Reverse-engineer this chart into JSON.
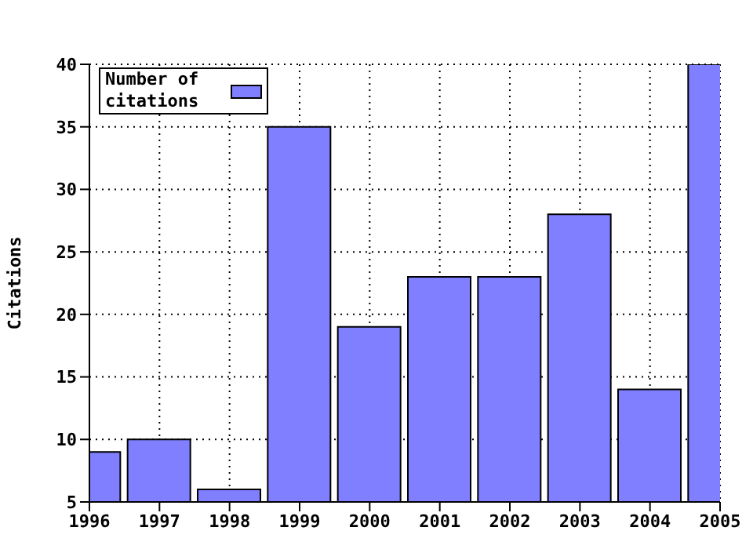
{
  "chart_data": {
    "type": "bar",
    "ylabel": "Citations",
    "x": [
      1996,
      1997,
      1998,
      1999,
      2000,
      2001,
      2002,
      2003,
      2004,
      2005
    ],
    "series": [
      {
        "name": "Number of citations",
        "color": "#7f7fff",
        "values": [
          9,
          10,
          6,
          35,
          19,
          23,
          23,
          28,
          14,
          40
        ]
      }
    ],
    "xlim": [
      1996,
      2005
    ],
    "xticks": [
      1996,
      1997,
      1998,
      1999,
      2000,
      2001,
      2002,
      2003,
      2004,
      2005
    ],
    "ylim": [
      5,
      40
    ],
    "yticks": [
      5,
      10,
      15,
      20,
      25,
      30,
      35,
      40
    ],
    "grid": true,
    "legend": "top left"
  }
}
